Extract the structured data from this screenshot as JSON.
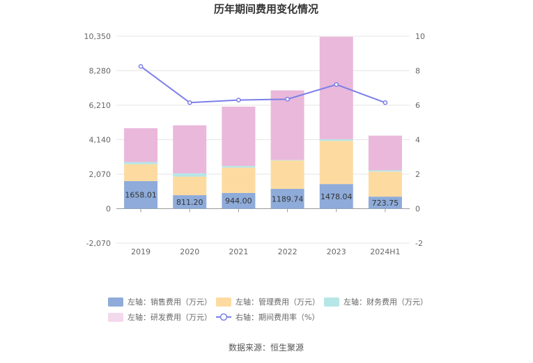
{
  "chart_data": {
    "type": "bar",
    "stacked": true,
    "title": "历年期间费用变化情况",
    "categories": [
      "2019",
      "2020",
      "2021",
      "2022",
      "2023",
      "2024H1"
    ],
    "left_axis": {
      "ticks": [
        "-2,070",
        "0",
        "2,070",
        "4,140",
        "6,210",
        "8,280",
        "10,350"
      ],
      "min": -2070,
      "max": 10350
    },
    "right_axis": {
      "ticks": [
        "-2",
        "0",
        "2",
        "4",
        "6",
        "8",
        "10"
      ],
      "min": -2,
      "max": 10
    },
    "series": [
      {
        "name": "左轴：销售费用（万元）",
        "axis": "left",
        "kind": "bar",
        "color": "#8eabd9",
        "values": [
          1658.01,
          811.2,
          944.0,
          1189.74,
          1478.04,
          723.75
        ],
        "labels": [
          "1658.01",
          "811.20",
          "944.00",
          "1189.74",
          "1478.04",
          "723.75"
        ]
      },
      {
        "name": "左轴：管理费用（万元）",
        "axis": "left",
        "kind": "bar",
        "color": "#fddba0",
        "values": [
          1010,
          1110,
          1520,
          1700,
          2590,
          1500
        ]
      },
      {
        "name": "左轴：财务费用（万元）",
        "axis": "left",
        "kind": "bar",
        "color": "#b6e6e6",
        "values": [
          130,
          200,
          100,
          30,
          100,
          80
        ]
      },
      {
        "name": "左轴：研发费用（万元）",
        "axis": "left",
        "kind": "bar",
        "color": "#e9b8da",
        "values": [
          2030,
          2880,
          3560,
          4180,
          6150,
          2080
        ]
      },
      {
        "name": "右轴：期间费用率（%）",
        "axis": "right",
        "kind": "line",
        "color": "#7b7fe8",
        "values": [
          8.25,
          6.15,
          6.3,
          6.35,
          7.2,
          6.15
        ]
      }
    ],
    "legend_position": "bottom",
    "grid": true
  },
  "source_text": "数据来源：恒生聚源"
}
